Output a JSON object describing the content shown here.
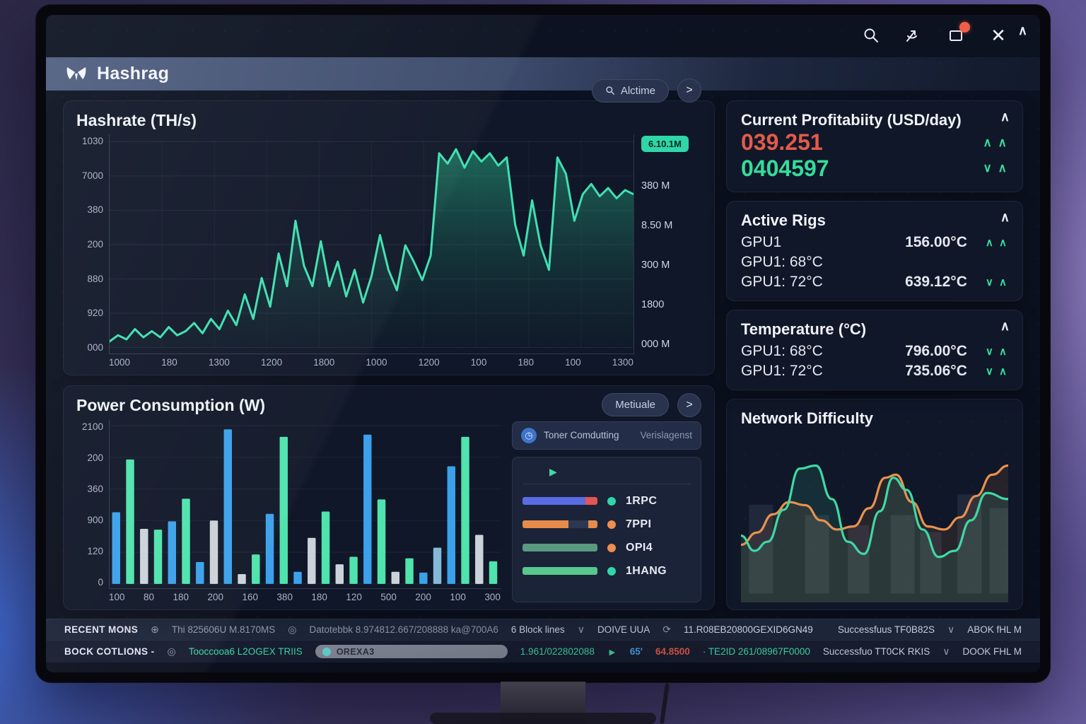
{
  "window": {
    "title": "Hashrag",
    "icons": [
      "search",
      "share",
      "notifications",
      "close"
    ],
    "notification_badge_color": "#f05f45"
  },
  "hashrate": {
    "title": "Hashrate (TH/s)",
    "search_label": "Alctime",
    "next_label": ">",
    "y_ticks": [
      "1030",
      "7000",
      "380",
      "200",
      "880",
      "920",
      "000"
    ],
    "x_ticks": [
      "1000",
      "180",
      "1300",
      "1200",
      "1800",
      "1000",
      "1200",
      "100",
      "180",
      "100",
      "1300"
    ],
    "badge": "6.10.1M",
    "side_labels": [
      "380 M",
      "8.50 M",
      "300 M",
      "1800",
      "000 M"
    ],
    "line_color": "#3fe0b0",
    "series": [
      3,
      6,
      4,
      9,
      5,
      8,
      5,
      10,
      6,
      8,
      12,
      7,
      14,
      9,
      18,
      11,
      26,
      14,
      34,
      20,
      46,
      30,
      62,
      40,
      30,
      52,
      30,
      42,
      25,
      38,
      22,
      35,
      55,
      38,
      28,
      50,
      42,
      33,
      45,
      95,
      90,
      97,
      88,
      96,
      91,
      95,
      89,
      93,
      60,
      45,
      72,
      50,
      38,
      93,
      85,
      62,
      75,
      80,
      74,
      78,
      73,
      77,
      75
    ]
  },
  "power": {
    "title": "Power Consumption (W)",
    "button_label": "Metiuale",
    "next_label": ">",
    "y_ticks": [
      "2100",
      "200",
      "360",
      "900",
      "120",
      "0"
    ],
    "x_ticks": [
      "100",
      "80",
      "180",
      "200",
      "160",
      "380",
      "180",
      "120",
      "500",
      "200",
      "100",
      "300"
    ],
    "max": 2100,
    "palette": {
      "blue": "#3ba1ea",
      "green": "#4fe3ad",
      "gray": "#ccd2da",
      "lightblue": "#85b9d8"
    },
    "bars": [
      [
        "blue",
        950
      ],
      [
        "green",
        1650
      ],
      [
        "gray",
        730
      ],
      [
        "green",
        720
      ],
      [
        "blue",
        830
      ],
      [
        "green",
        1130
      ],
      [
        "blue",
        290
      ],
      [
        "gray",
        840
      ],
      [
        "blue",
        2050
      ],
      [
        "gray",
        130
      ],
      [
        "green",
        390
      ],
      [
        "blue",
        930
      ],
      [
        "green",
        1950
      ],
      [
        "blue",
        160
      ],
      [
        "gray",
        610
      ],
      [
        "green",
        960
      ],
      [
        "gray",
        260
      ],
      [
        "green",
        360
      ],
      [
        "blue",
        1980
      ],
      [
        "green",
        1120
      ],
      [
        "gray",
        160
      ],
      [
        "green",
        340
      ],
      [
        "blue",
        150
      ],
      [
        "lightblue",
        480
      ],
      [
        "blue",
        1560
      ],
      [
        "green",
        1950
      ],
      [
        "gray",
        650
      ],
      [
        "green",
        300
      ]
    ]
  },
  "legend": {
    "header_left": "Toner Comdutting",
    "header_right": "Verislagenst",
    "play_glyph": "▶",
    "items": [
      {
        "label": "1RPC",
        "dot": "#2fd6a8",
        "segments": [
          [
            "#5b6be4",
            72
          ],
          [
            "#e25555",
            14
          ]
        ]
      },
      {
        "label": "7PPI",
        "dot": "#ef8e4e",
        "segments": [
          [
            "#e78b4a",
            50
          ],
          [
            "#2c3750",
            22
          ],
          [
            "#e78b4a",
            10
          ]
        ]
      },
      {
        "label": "OPI4",
        "dot": "#ef8e4e",
        "segments": [
          [
            "#5a9a80",
            100
          ]
        ]
      },
      {
        "label": "1HANG",
        "dot": "#2fd6a8",
        "segments": [
          [
            "#57c78e",
            100
          ]
        ]
      }
    ]
  },
  "profitability": {
    "title": "Current Profitabiity (USD/day)",
    "value_primary": "039.251",
    "primary_color": "#e25b49",
    "trend_primary": [
      "∧",
      "∧"
    ],
    "value_secondary": "0404597",
    "secondary_color": "#35dc9a",
    "trend_secondary": [
      "∨",
      "∧"
    ]
  },
  "active_rigs": {
    "title": "Active Rigs",
    "rows": [
      {
        "label": "GPU1",
        "value": "156.00°C",
        "trend": [
          "∧",
          "∧"
        ]
      },
      {
        "label": "GPU1: 68°C",
        "value": "",
        "trend": []
      },
      {
        "label": "GPU1: 72°C",
        "value": "639.12°C",
        "trend": [
          "∨",
          "∧"
        ]
      }
    ]
  },
  "temperature": {
    "title": "Temperature (°C)",
    "rows": [
      {
        "label": "GPU1: 68°C",
        "value": "796.00°C",
        "trend": [
          "∨",
          "∧"
        ]
      },
      {
        "label": "GPU1: 72°C",
        "value": "735.06°C",
        "trend": [
          "∨",
          "∧"
        ]
      }
    ]
  },
  "difficulty": {
    "title": "Network Difficulty",
    "teal_color": "#3fd9a4",
    "orange_color": "#e8924f",
    "teal_wave": [
      [
        0,
        62
      ],
      [
        5,
        72
      ],
      [
        10,
        66
      ],
      [
        16,
        45
      ],
      [
        22,
        18
      ],
      [
        28,
        16
      ],
      [
        34,
        38
      ],
      [
        40,
        66
      ],
      [
        46,
        74
      ],
      [
        52,
        46
      ],
      [
        57,
        24
      ],
      [
        62,
        32
      ],
      [
        68,
        58
      ],
      [
        74,
        76
      ],
      [
        80,
        72
      ],
      [
        86,
        52
      ],
      [
        92,
        34
      ],
      [
        100,
        38
      ]
    ],
    "orange_wave": [
      [
        0,
        68
      ],
      [
        6,
        60
      ],
      [
        12,
        48
      ],
      [
        18,
        40
      ],
      [
        24,
        42
      ],
      [
        30,
        52
      ],
      [
        36,
        58
      ],
      [
        42,
        56
      ],
      [
        48,
        44
      ],
      [
        54,
        24
      ],
      [
        58,
        22
      ],
      [
        64,
        40
      ],
      [
        70,
        56
      ],
      [
        76,
        58
      ],
      [
        82,
        50
      ],
      [
        88,
        36
      ],
      [
        94,
        22
      ],
      [
        100,
        16
      ]
    ],
    "bars": [
      [
        3,
        9,
        52
      ],
      [
        24,
        9,
        46
      ],
      [
        40,
        8,
        40
      ],
      [
        56,
        9,
        46
      ],
      [
        67,
        8,
        36
      ],
      [
        81,
        9,
        58
      ],
      [
        93,
        7,
        50
      ]
    ]
  },
  "status": {
    "row1": [
      {
        "text": "RECENT MONS",
        "cls": "st-label"
      },
      {
        "icon": "globe"
      },
      {
        "text": "Thi 825606U M.8170MS",
        "cls": "st-dim"
      },
      {
        "icon": "target"
      },
      {
        "text": "Datotebbk 8.974812.667/208888 ka@700A6",
        "cls": "st-dim"
      },
      {
        "text": "6 Block lines",
        "cls": "st-norm"
      },
      {
        "icon": "chevron"
      },
      {
        "text": "DOIVE UUA",
        "cls": "st-norm"
      },
      {
        "icon": "refresh"
      },
      {
        "text": "11.R08EB20800GEXID6GN49",
        "cls": "st-norm"
      },
      {
        "text": "Successfuus TF0B82S",
        "cls": "st-right",
        "push": true
      },
      {
        "icon": "chevron"
      },
      {
        "text": "ABOK fHL M",
        "cls": "st-right"
      }
    ],
    "row2": [
      {
        "text": "BOCK COTLIONS  -",
        "cls": "st-label"
      },
      {
        "icon": "target"
      },
      {
        "text": "Tooccooa6 L2OGEX TRIIS",
        "cls": "st-teal"
      },
      {
        "pill": true,
        "text": "OREXA3"
      },
      {
        "text": "1.961/022802088",
        "cls": "st-teal"
      },
      {
        "icon": "play"
      },
      {
        "text": "65'",
        "cls": "st-blue"
      },
      {
        "text": "64.8500",
        "cls": "st-red"
      },
      {
        "text": "· TE2ID 261/08967F0000",
        "cls": "st-teal"
      },
      {
        "text": "Successfuo TT0CK RKIS",
        "cls": "st-right",
        "push": true
      },
      {
        "icon": "chevron"
      },
      {
        "text": "DOOK FHL M",
        "cls": "st-right"
      }
    ]
  }
}
